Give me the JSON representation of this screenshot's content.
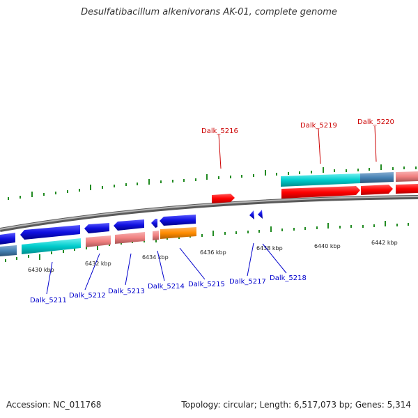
{
  "title": "Desulfatibacillum alkenivorans AK-01, complete genome",
  "footer": {
    "accession": "Accession: NC_011768",
    "summary": "Topology: circular; Length: 6,517,073 bp; Genes: 5,314"
  },
  "colors": {
    "forward_gene": "#ff0000",
    "reverse_gene": "#1010e0",
    "cds_cyan": "#00cccc",
    "cds_salmon": "#f08080",
    "cds_steel": "#4682b4",
    "cds_orange": "#ff8c00",
    "backbone": "#8a8a8a",
    "tick": "#228b22",
    "forward_label": "#cc0000",
    "reverse_label": "#0000cc"
  },
  "scale_labels": [
    "6430 kbp",
    "6432 kbp",
    "6434 kbp",
    "6436 kbp",
    "6438 kbp",
    "6440 kbp",
    "6442 kbp"
  ],
  "forward_labels": [
    "Dalk_5216",
    "Dalk_5219",
    "Dalk_5220"
  ],
  "reverse_labels": [
    "Dalk_5211",
    "Dalk_5212",
    "Dalk_5213",
    "Dalk_5214",
    "Dalk_5215",
    "Dalk_5217",
    "Dalk_5218"
  ]
}
